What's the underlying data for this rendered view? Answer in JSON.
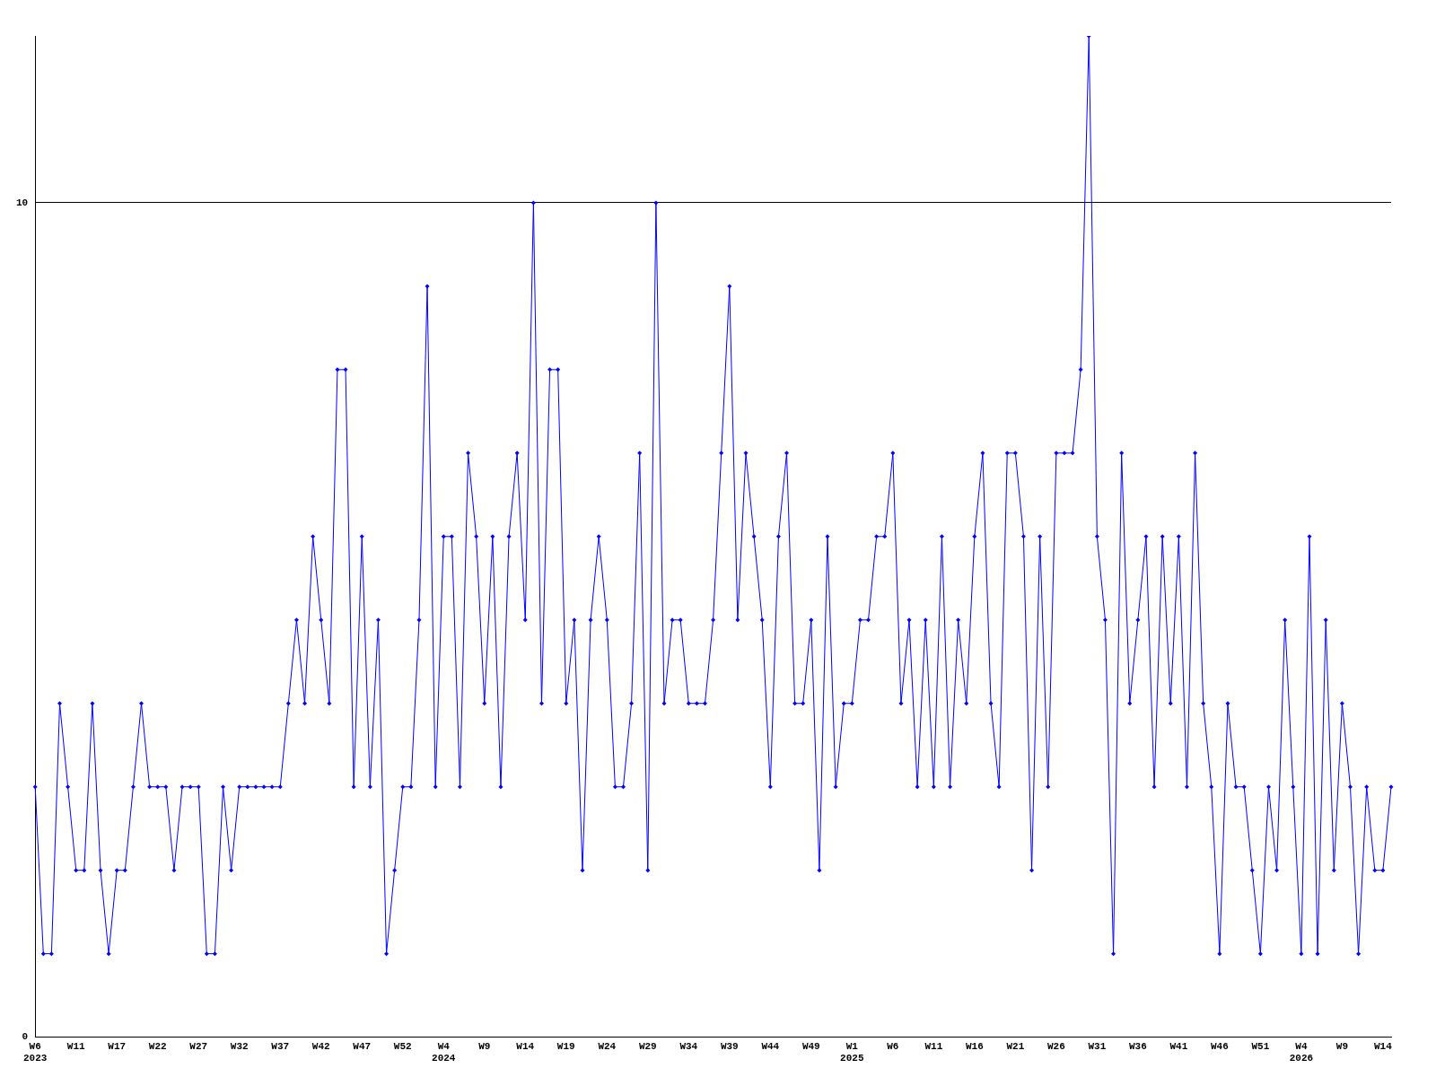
{
  "chart_data": {
    "type": "line",
    "color": "#0000ff",
    "marker": "diamond",
    "line_style": "solid",
    "grid": "y",
    "legend": false,
    "categories": [
      "W6\n2023",
      null,
      null,
      null,
      null,
      "W11",
      null,
      null,
      null,
      null,
      "W17",
      null,
      null,
      null,
      null,
      "W22",
      null,
      null,
      null,
      null,
      "W27",
      null,
      null,
      null,
      null,
      "W32",
      null,
      null,
      null,
      null,
      "W37",
      null,
      null,
      null,
      null,
      "W42",
      null,
      null,
      null,
      null,
      "W47",
      null,
      null,
      null,
      null,
      "W52",
      null,
      null,
      null,
      null,
      "W4\n2024",
      null,
      null,
      null,
      null,
      "W9",
      null,
      null,
      null,
      null,
      "W14",
      null,
      null,
      null,
      null,
      "W19",
      null,
      null,
      null,
      null,
      "W24",
      null,
      null,
      null,
      null,
      "W29",
      null,
      null,
      null,
      null,
      "W34",
      null,
      null,
      null,
      null,
      "W39",
      null,
      null,
      null,
      null,
      "W44",
      null,
      null,
      null,
      null,
      "W49",
      null,
      null,
      null,
      null,
      "W1\n2025",
      null,
      null,
      null,
      null,
      "W6",
      null,
      null,
      null,
      null,
      "W11",
      null,
      null,
      null,
      null,
      "W16",
      null,
      null,
      null,
      null,
      "W21",
      null,
      null,
      null,
      null,
      "W26",
      null,
      null,
      null,
      null,
      "W31",
      null,
      null,
      null,
      null,
      "W36",
      null,
      null,
      null,
      null,
      "W41",
      null,
      null,
      null,
      null,
      "W46",
      null,
      null,
      null,
      null,
      "W51",
      null,
      null,
      null,
      null,
      "W4\n2026",
      null,
      null,
      null,
      null,
      "W9",
      null,
      null,
      null,
      null,
      "W14",
      null
    ],
    "values": [
      3,
      1,
      1,
      4,
      3,
      2,
      2,
      4,
      2,
      1,
      2,
      2,
      3,
      4,
      3,
      3,
      3,
      2,
      3,
      3,
      3,
      1,
      1,
      3,
      2,
      3,
      3,
      3,
      3,
      3,
      3,
      4,
      5,
      4,
      6,
      5,
      4,
      8,
      8,
      3,
      6,
      3,
      5,
      1,
      2,
      3,
      3,
      5,
      9,
      3,
      6,
      6,
      3,
      7,
      6,
      4,
      6,
      3,
      6,
      7,
      5,
      10,
      4,
      8,
      8,
      4,
      5,
      2,
      5,
      6,
      5,
      3,
      3,
      4,
      7,
      2,
      10,
      4,
      5,
      5,
      4,
      4,
      4,
      5,
      7,
      9,
      5,
      7,
      6,
      5,
      3,
      6,
      7,
      4,
      4,
      5,
      2,
      6,
      3,
      4,
      4,
      5,
      5,
      6,
      6,
      7,
      4,
      5,
      3,
      5,
      3,
      6,
      3,
      5,
      4,
      6,
      7,
      4,
      3,
      7,
      7,
      6,
      2,
      6,
      3,
      7,
      7,
      7,
      8,
      12,
      6,
      5,
      1,
      7,
      4,
      5,
      6,
      3,
      6,
      4,
      6,
      3,
      7,
      4,
      3,
      1,
      4,
      3,
      3,
      2,
      1,
      3,
      2,
      5,
      3,
      1,
      6,
      1,
      5,
      2,
      4,
      3,
      1,
      3,
      2,
      2,
      3
    ],
    "ylim": [
      0,
      12
    ],
    "yticks": [
      0,
      10
    ]
  }
}
